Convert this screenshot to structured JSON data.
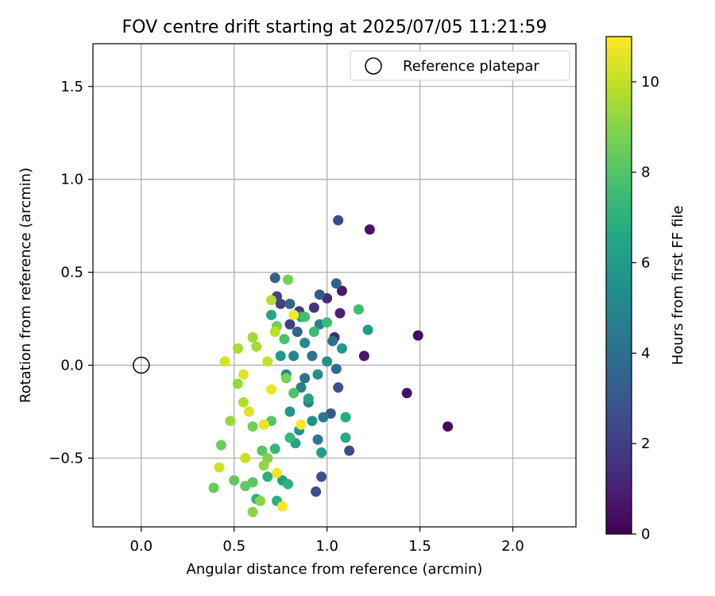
{
  "chart_data": {
    "type": "scatter",
    "title": "FOV centre drift starting at 2025/07/05 11:21:59",
    "xlabel": "Angular distance from reference (arcmin)",
    "ylabel": "Rotation from reference (arcmin)",
    "xlim": [
      -0.26,
      2.34
    ],
    "ylim": [
      -0.87,
      1.73
    ],
    "xticks": [
      "0.0",
      "0.5",
      "1.0",
      "1.5",
      "2.0"
    ],
    "xtick_values": [
      0.0,
      0.5,
      1.0,
      1.5,
      2.0
    ],
    "yticks": [
      "−0.5",
      "0.0",
      "0.5",
      "1.0",
      "1.5"
    ],
    "ytick_values": [
      -0.5,
      0.0,
      0.5,
      1.0,
      1.5
    ],
    "grid": true,
    "legend": {
      "position": "top-right",
      "entries": [
        "Reference platepar"
      ]
    },
    "reference_point": {
      "label": "Reference platepar",
      "x": 0.0,
      "y": 0.0
    },
    "colorbar": {
      "label": "Hours from first FF file",
      "colormap": "viridis",
      "range": [
        0,
        11
      ],
      "ticks": [
        "0",
        "2",
        "4",
        "6",
        "8",
        "10"
      ],
      "tick_values": [
        0,
        2,
        4,
        6,
        8,
        10
      ]
    },
    "series": [
      {
        "columns": [
          "x",
          "y",
          "hours"
        ],
        "points": [
          [
            1.65,
            -0.33,
            0.3
          ],
          [
            1.49,
            0.16,
            0.4
          ],
          [
            1.43,
            -0.15,
            0.5
          ],
          [
            1.23,
            0.73,
            0.6
          ],
          [
            1.2,
            0.05,
            0.7
          ],
          [
            1.08,
            0.4,
            0.8
          ],
          [
            1.07,
            0.28,
            1.0
          ],
          [
            1.04,
            0.15,
            1.2
          ],
          [
            1.0,
            0.36,
            1.4
          ],
          [
            0.93,
            0.31,
            1.6
          ],
          [
            0.85,
            0.29,
            1.8
          ],
          [
            0.8,
            0.22,
            2.0
          ],
          [
            0.75,
            0.33,
            2.1
          ],
          [
            0.73,
            0.37,
            2.2
          ],
          [
            1.06,
            0.78,
            2.4
          ],
          [
            1.12,
            -0.46,
            2.5
          ],
          [
            0.94,
            -0.68,
            2.6
          ],
          [
            0.97,
            -0.6,
            2.7
          ],
          [
            1.06,
            -0.12,
            2.8
          ],
          [
            1.02,
            -0.26,
            3.0
          ],
          [
            0.96,
            0.38,
            3.1
          ],
          [
            0.72,
            0.47,
            3.2
          ],
          [
            1.05,
            0.44,
            3.3
          ],
          [
            0.8,
            0.33,
            3.5
          ],
          [
            0.84,
            0.18,
            3.6
          ],
          [
            1.05,
            -0.02,
            3.8
          ],
          [
            1.03,
            0.13,
            4.0
          ],
          [
            0.92,
            0.05,
            4.1
          ],
          [
            0.88,
            -0.07,
            4.3
          ],
          [
            0.98,
            -0.28,
            4.4
          ],
          [
            0.95,
            -0.4,
            4.5
          ],
          [
            0.9,
            -0.2,
            4.6
          ],
          [
            0.86,
            -0.12,
            4.7
          ],
          [
            0.96,
            0.22,
            4.9
          ],
          [
            0.82,
            0.05,
            5.0
          ],
          [
            0.78,
            -0.05,
            5.1
          ],
          [
            0.88,
            0.12,
            5.2
          ],
          [
            0.95,
            -0.05,
            5.4
          ],
          [
            1.0,
            0.02,
            5.5
          ],
          [
            0.92,
            -0.3,
            5.6
          ],
          [
            0.85,
            -0.35,
            5.7
          ],
          [
            0.8,
            -0.25,
            5.8
          ],
          [
            0.75,
            0.05,
            5.9
          ],
          [
            1.22,
            0.19,
            6.0
          ],
          [
            1.08,
            0.09,
            6.0
          ],
          [
            0.97,
            -0.47,
            6.1
          ],
          [
            0.76,
            -0.62,
            6.2
          ],
          [
            0.83,
            -0.42,
            6.3
          ],
          [
            0.9,
            -0.18,
            6.4
          ],
          [
            0.86,
            0.26,
            6.5
          ],
          [
            0.7,
            0.27,
            6.6
          ],
          [
            1.1,
            -0.28,
            6.7
          ],
          [
            1.1,
            -0.39,
            6.8
          ],
          [
            0.73,
            -0.73,
            6.9
          ],
          [
            0.79,
            -0.64,
            7.0
          ],
          [
            0.68,
            -0.6,
            7.0
          ],
          [
            0.62,
            -0.72,
            7.1
          ],
          [
            0.72,
            -0.45,
            7.2
          ],
          [
            0.8,
            -0.39,
            7.3
          ],
          [
            0.93,
            0.18,
            7.4
          ],
          [
            1.0,
            0.23,
            7.5
          ],
          [
            1.17,
            0.3,
            7.6
          ],
          [
            0.88,
            0.26,
            7.7
          ],
          [
            0.77,
            0.14,
            7.8
          ],
          [
            0.82,
            -0.15,
            7.9
          ],
          [
            0.7,
            -0.3,
            8.0
          ],
          [
            0.65,
            -0.46,
            8.1
          ],
          [
            0.6,
            -0.63,
            8.2
          ],
          [
            0.56,
            -0.65,
            8.3
          ],
          [
            0.5,
            -0.62,
            8.3
          ],
          [
            0.39,
            -0.66,
            8.4
          ],
          [
            0.43,
            -0.43,
            8.5
          ],
          [
            0.6,
            -0.33,
            8.6
          ],
          [
            0.73,
            0.21,
            8.7
          ],
          [
            0.79,
            0.46,
            8.7
          ],
          [
            0.78,
            -0.07,
            8.8
          ],
          [
            0.68,
            -0.5,
            8.9
          ],
          [
            0.64,
            -0.73,
            9.0
          ],
          [
            0.6,
            -0.79,
            9.1
          ],
          [
            0.66,
            -0.54,
            9.2
          ],
          [
            0.48,
            -0.3,
            9.3
          ],
          [
            0.52,
            -0.1,
            9.3
          ],
          [
            0.6,
            0.15,
            9.4
          ],
          [
            0.62,
            0.1,
            9.5
          ],
          [
            0.52,
            0.09,
            9.6
          ],
          [
            0.55,
            -0.2,
            9.7
          ],
          [
            0.7,
            0.35,
            9.8
          ],
          [
            0.72,
            0.18,
            9.9
          ],
          [
            0.68,
            0.02,
            10.0
          ],
          [
            0.56,
            -0.5,
            10.1
          ],
          [
            0.42,
            -0.55,
            10.2
          ],
          [
            0.45,
            0.02,
            10.3
          ],
          [
            0.55,
            -0.05,
            10.4
          ],
          [
            0.58,
            -0.25,
            10.5
          ],
          [
            0.66,
            -0.32,
            10.6
          ],
          [
            0.7,
            -0.13,
            10.7
          ],
          [
            0.73,
            -0.58,
            10.8
          ],
          [
            0.76,
            -0.76,
            10.9
          ],
          [
            0.82,
            0.27,
            10.9
          ],
          [
            0.86,
            -0.32,
            11.0
          ]
        ]
      }
    ]
  }
}
